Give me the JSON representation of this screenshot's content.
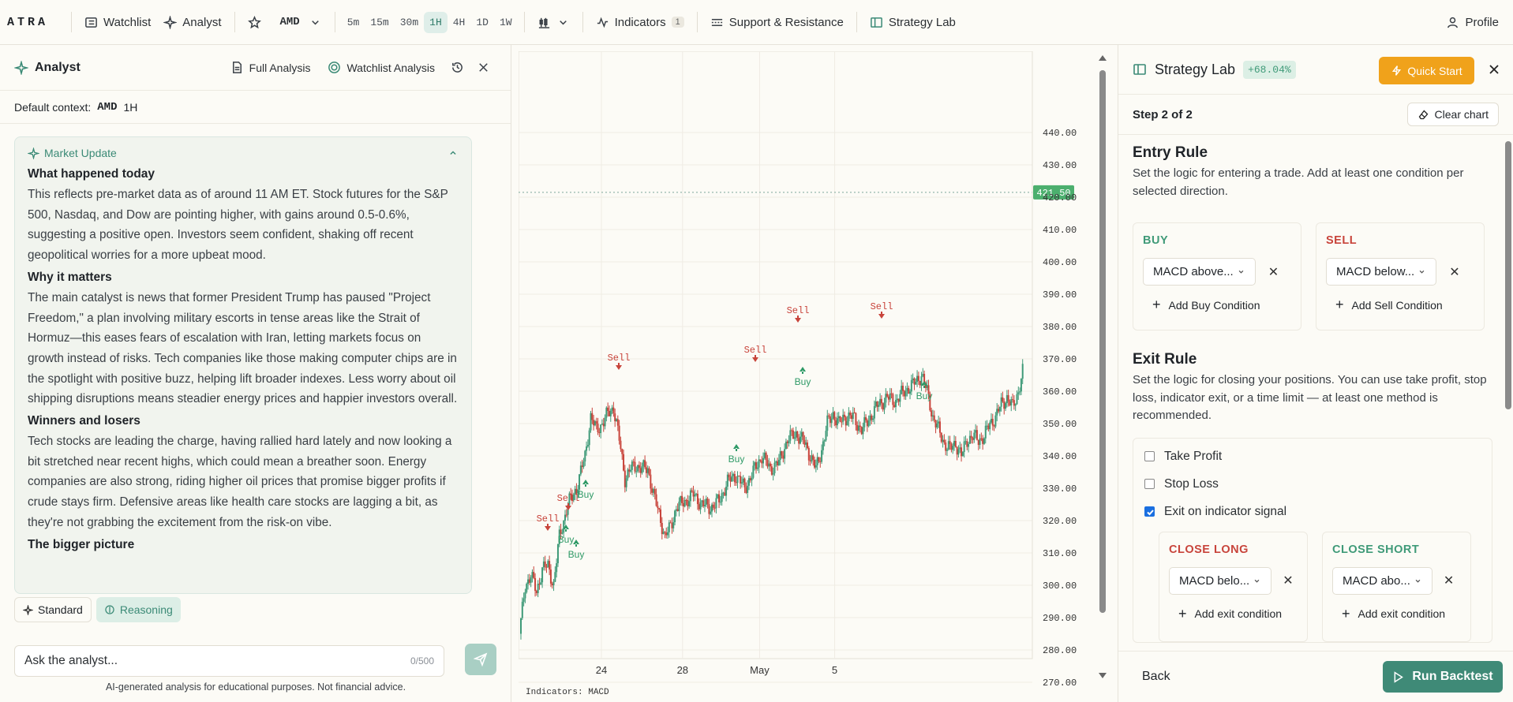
{
  "app": {
    "logo": "ATRA"
  },
  "topbar": {
    "watchlist": "Watchlist",
    "analyst": "Analyst",
    "symbol": "AMD",
    "timeframes": [
      "5m",
      "15m",
      "30m",
      "1H",
      "4H",
      "1D",
      "1W"
    ],
    "active_timeframe": "1H",
    "indicators": "Indicators",
    "indicators_count": "1",
    "support_resistance": "Support & Resistance",
    "strategy_lab": "Strategy Lab",
    "profile": "Profile"
  },
  "analyst": {
    "title": "Analyst",
    "full_analysis": "Full Analysis",
    "watchlist_analysis": "Watchlist Analysis",
    "context_label": "Default context:",
    "context_symbol": "AMD",
    "context_tf": "1H",
    "card_title": "Market Update",
    "sections": [
      {
        "heading": "What happened today",
        "body": "This reflects pre-market data as of around 11 AM ET. Stock futures for the S&P 500, Nasdaq, and Dow are pointing higher, with gains around 0.5-0.6%, suggesting a positive open. Investors seem confident, shaking off recent geopolitical worries for a more upbeat mood."
      },
      {
        "heading": "Why it matters",
        "body": "The main catalyst is news that former President Trump has paused \"Project Freedom,\" a plan involving military escorts in tense areas like the Strait of Hormuz—this eases fears of escalation with Iran, letting markets focus on growth instead of risks. Tech companies like those making computer chips are in the spotlight with positive buzz, helping lift broader indexes. Less worry about oil shipping disruptions means steadier energy prices and happier investors overall."
      },
      {
        "heading": "Winners and losers",
        "body": "Tech stocks are leading the charge, having rallied hard lately and now looking a bit stretched near recent highs, which could mean a breather soon. Energy companies are also strong, riding higher oil prices that promise bigger profits if crude stays firm. Defensive areas like health care stocks are lagging a bit, as they're not grabbing the excitement from the risk-on vibe."
      },
      {
        "heading": "The bigger picture",
        "body": ""
      }
    ],
    "mode_standard": "Standard",
    "mode_reasoning": "Reasoning",
    "input_placeholder": "Ask the analyst...",
    "char_count": "0/500",
    "disclaimer": "AI-generated analysis for educational purposes. Not financial advice."
  },
  "chart": {
    "price_labels": [
      "440.00",
      "430.00",
      "420.00",
      "410.00",
      "400.00",
      "390.00",
      "380.00",
      "370.00",
      "360.00",
      "350.00",
      "340.00",
      "330.00",
      "320.00",
      "310.00",
      "300.00",
      "290.00",
      "280.00",
      "270.00"
    ],
    "current_price": "421.50",
    "x_labels": [
      "24",
      "28",
      "May",
      "5"
    ],
    "signals": [
      {
        "label": "Sell",
        "type": "sell"
      },
      {
        "label": "Sell",
        "type": "sell"
      },
      {
        "label": "Buy",
        "type": "buy"
      },
      {
        "label": "Buy",
        "type": "buy"
      },
      {
        "label": "Sell",
        "type": "sell"
      },
      {
        "label": "Buy",
        "type": "buy"
      },
      {
        "label": "Buy",
        "type": "buy"
      },
      {
        "label": "Sell",
        "type": "sell"
      },
      {
        "label": "Sell",
        "type": "sell"
      },
      {
        "label": "Buy",
        "type": "buy"
      },
      {
        "label": "Sell",
        "type": "sell"
      },
      {
        "label": "Buy",
        "type": "buy"
      }
    ],
    "indicators_label": "Indicators: MACD",
    "colors": {
      "up": "#3f9a78",
      "down": "#c8443b",
      "price_tag": "#4caf6e"
    }
  },
  "strategy": {
    "title": "Strategy Lab",
    "performance": "+68.04%",
    "quick_start": "Quick Start",
    "step": "Step 2 of 2",
    "clear_chart": "Clear chart",
    "entry_title": "Entry Rule",
    "entry_desc": "Set the logic for entering a trade. Add at least one condition per selected direction.",
    "buy_label": "BUY",
    "sell_label": "SELL",
    "buy_condition": "MACD above...",
    "sell_condition": "MACD below...",
    "add_buy": "Add Buy Condition",
    "add_sell": "Add Sell Condition",
    "exit_title": "Exit Rule",
    "exit_desc": "Set the logic for closing your positions. You can use take profit, stop loss, indicator exit, or a time limit — at least one method is recommended.",
    "take_profit": "Take Profit",
    "stop_loss": "Stop Loss",
    "exit_indicator": "Exit on indicator signal",
    "close_long": "CLOSE LONG",
    "close_short": "CLOSE SHORT",
    "close_long_condition": "MACD belo...",
    "close_short_condition": "MACD abo...",
    "add_exit": "Add exit condition",
    "back": "Back",
    "run": "Run Backtest"
  }
}
